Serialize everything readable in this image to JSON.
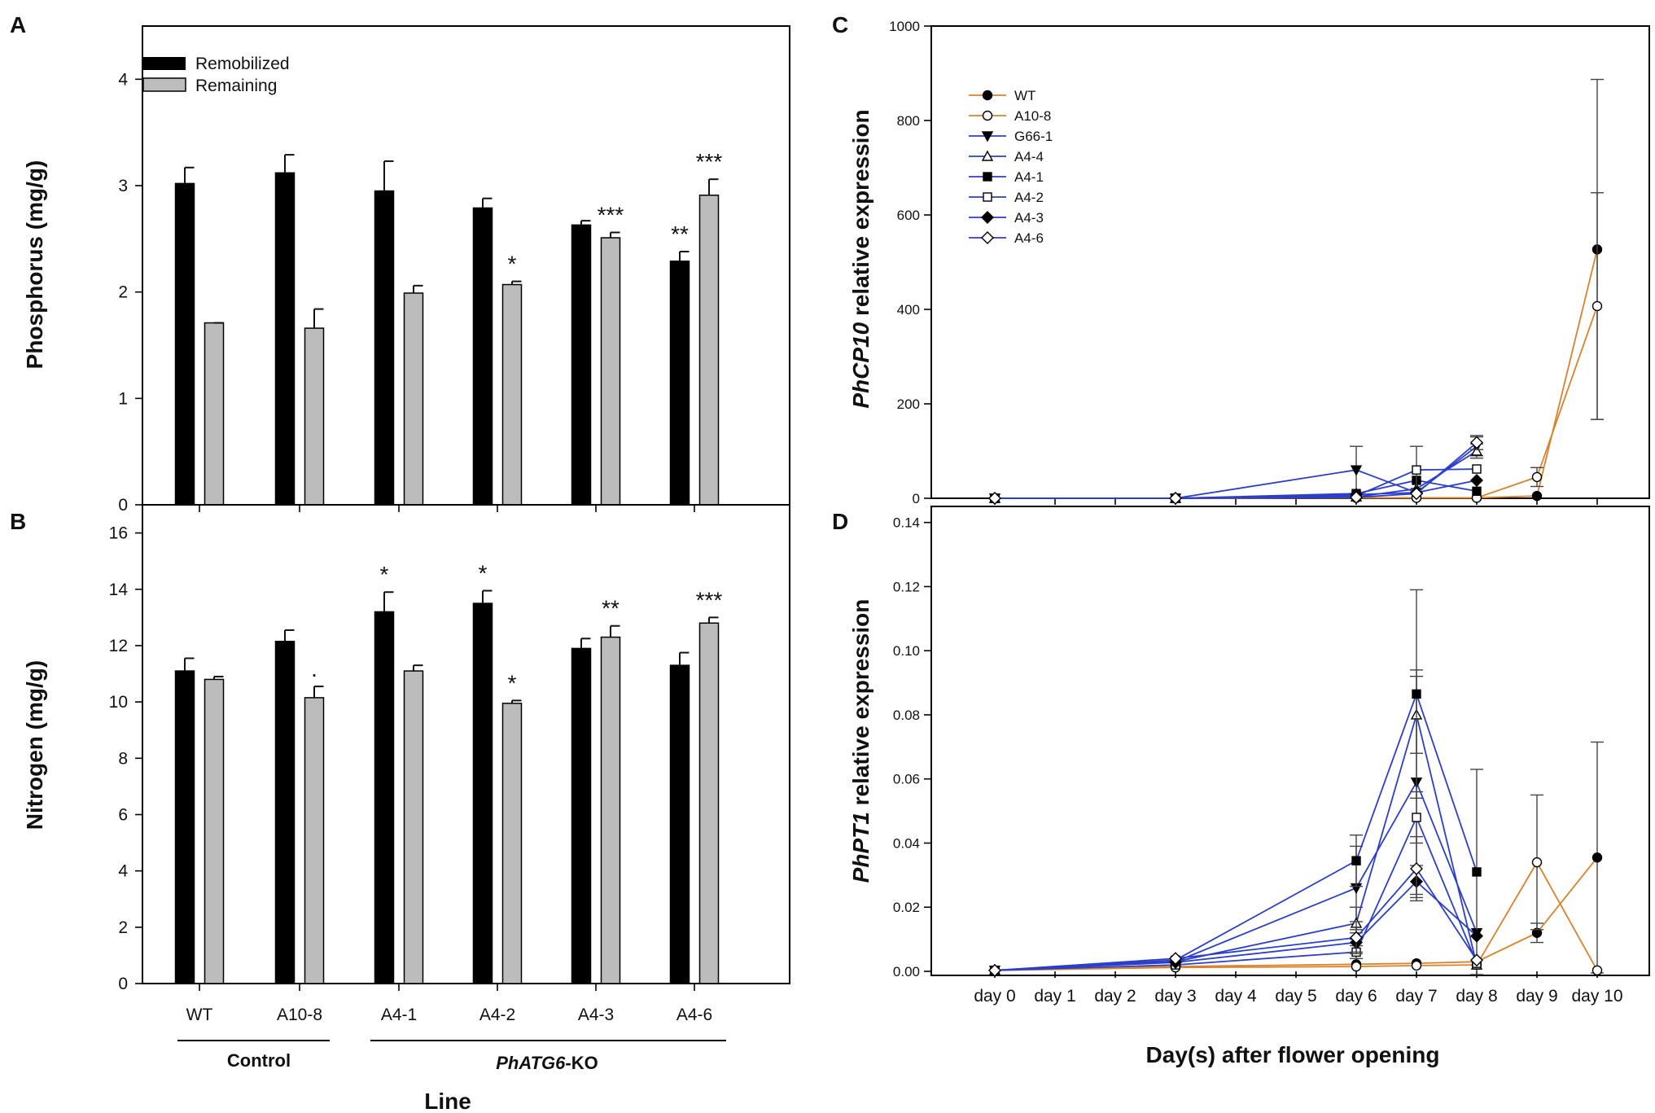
{
  "colors": {
    "remobilized": "#000000",
    "remaining": "#bcbcbc",
    "orange": "#d9822b",
    "blue": "#2b3fc8"
  },
  "chart_data": [
    {
      "panel": "A",
      "type": "bar",
      "ylabel": "Phosphorus (mg/g)",
      "ylim": [
        0,
        4.5
      ],
      "yticks": [
        "0",
        "1",
        "2",
        "3",
        "4"
      ],
      "categories": [
        "WT",
        "A10-8",
        "A4-1",
        "A4-2",
        "A4-3",
        "A4-6"
      ],
      "series": [
        {
          "name": "Remobilized",
          "values": [
            3.02,
            3.12,
            2.95,
            2.79,
            2.63,
            2.29
          ],
          "errors": [
            0.15,
            0.17,
            0.28,
            0.09,
            0.04,
            0.09
          ]
        },
        {
          "name": "Remaining",
          "values": [
            1.71,
            1.66,
            1.99,
            2.07,
            2.51,
            2.91
          ],
          "errors": [
            0.0,
            0.18,
            0.07,
            0.03,
            0.05,
            0.15
          ]
        }
      ],
      "annotations": [
        {
          "category": "A4-2",
          "series": "Remaining",
          "text": "*"
        },
        {
          "category": "A4-3",
          "series": "Remaining",
          "text": "***"
        },
        {
          "category": "A4-6",
          "series": "Remobilized",
          "text": "**"
        },
        {
          "category": "A4-6",
          "series": "Remaining",
          "text": "***"
        }
      ],
      "legend": [
        "Remobilized",
        "Remaining"
      ]
    },
    {
      "panel": "B",
      "type": "bar",
      "xlabel": "Line",
      "ylabel": "Nitrogen (mg/g)",
      "ylim": [
        0,
        17
      ],
      "yticks": [
        "0",
        "2",
        "4",
        "6",
        "8",
        "10",
        "12",
        "14",
        "16"
      ],
      "categories": [
        "WT",
        "A10-8",
        "A4-1",
        "A4-2",
        "A4-3",
        "A4-6"
      ],
      "series": [
        {
          "name": "Remobilized",
          "values": [
            11.1,
            12.15,
            13.2,
            13.5,
            11.9,
            11.3
          ],
          "errors": [
            0.45,
            0.4,
            0.7,
            0.45,
            0.35,
            0.45
          ]
        },
        {
          "name": "Remaining",
          "values": [
            10.8,
            10.15,
            11.1,
            9.95,
            12.3,
            12.8
          ],
          "errors": [
            0.1,
            0.4,
            0.2,
            0.1,
            0.4,
            0.2
          ]
        }
      ],
      "annotations": [
        {
          "category": "A10-8",
          "series": "Remaining",
          "text": "."
        },
        {
          "category": "A4-1",
          "series": "Remobilized",
          "text": "*"
        },
        {
          "category": "A4-2",
          "series": "Remobilized",
          "text": "*"
        },
        {
          "category": "A4-2",
          "series": "Remaining",
          "text": "*"
        },
        {
          "category": "A4-3",
          "series": "Remaining",
          "text": "**"
        },
        {
          "category": "A4-6",
          "series": "Remaining",
          "text": "***"
        }
      ],
      "groups": [
        {
          "label": "Control",
          "italic_part": "",
          "categories": [
            "WT",
            "A10-8"
          ]
        },
        {
          "label": "-KO",
          "italic_part": "PhATG6",
          "categories": [
            "A4-1",
            "A4-2",
            "A4-3",
            "A4-6"
          ]
        }
      ]
    },
    {
      "panel": "C",
      "type": "line",
      "ylabel_italic": "PhCP10",
      "ylabel_rest": " relative expression",
      "ylim": [
        0,
        1000
      ],
      "yticks": [
        "0",
        "200",
        "400",
        "600",
        "800",
        "1000"
      ],
      "x_days": [
        0,
        3,
        6,
        7,
        8,
        9,
        10
      ],
      "series": [
        {
          "name": "WT",
          "color": "orange",
          "marker": "filled-circle",
          "x": [
            0,
            3,
            6,
            7,
            8,
            9,
            10
          ],
          "y": [
            0,
            0,
            1,
            1,
            1,
            5,
            527
          ],
          "err": [
            0,
            0,
            0,
            0,
            0,
            0,
            360
          ]
        },
        {
          "name": "A10-8",
          "color": "orange",
          "marker": "open-circle",
          "x": [
            0,
            3,
            6,
            7,
            8,
            9,
            10
          ],
          "y": [
            0,
            0,
            1,
            1,
            1,
            45,
            407
          ],
          "err": [
            0,
            0,
            0,
            0,
            0,
            20,
            240
          ]
        },
        {
          "name": "G66-1",
          "color": "blue",
          "marker": "filled-triangle-down",
          "x": [
            0,
            3,
            6,
            7,
            8
          ],
          "y": [
            0,
            0,
            60,
            12,
            110
          ],
          "err": [
            0,
            0,
            50,
            0,
            20
          ]
        },
        {
          "name": "A4-4",
          "color": "blue",
          "marker": "open-triangle-up",
          "x": [
            0,
            3,
            6,
            7,
            8
          ],
          "y": [
            0,
            0,
            3,
            20,
            100
          ],
          "err": [
            0,
            0,
            0,
            0,
            15
          ]
        },
        {
          "name": "A4-1",
          "color": "blue",
          "marker": "filled-square",
          "x": [
            0,
            3,
            6,
            7,
            8
          ],
          "y": [
            0,
            0,
            10,
            38,
            15
          ],
          "err": [
            0,
            0,
            0,
            0,
            0
          ]
        },
        {
          "name": "A4-2",
          "color": "blue",
          "marker": "open-square",
          "x": [
            0,
            3,
            6,
            7,
            8
          ],
          "y": [
            0,
            0,
            5,
            60,
            62
          ],
          "err": [
            0,
            0,
            0,
            50,
            0
          ]
        },
        {
          "name": "A4-3",
          "color": "blue",
          "marker": "filled-diamond",
          "x": [
            0,
            3,
            6,
            7,
            8
          ],
          "y": [
            0,
            0,
            8,
            12,
            38
          ],
          "err": [
            0,
            0,
            0,
            0,
            0
          ]
        },
        {
          "name": "A4-6",
          "color": "blue",
          "marker": "open-diamond",
          "x": [
            0,
            3,
            6,
            7,
            8
          ],
          "y": [
            0,
            0,
            2,
            10,
            118
          ],
          "err": [
            0,
            0,
            0,
            0,
            15
          ]
        }
      ],
      "legend": [
        "WT",
        "A10-8",
        "G66-1",
        "A4-4",
        "A4-1",
        "A4-2",
        "A4-3",
        "A4-6"
      ]
    },
    {
      "panel": "D",
      "type": "line",
      "xlabel": "Day(s) after flower opening",
      "ylabel_italic": "PhPT1",
      "ylabel_rest": " relative expression",
      "ylim": [
        0,
        0.145
      ],
      "yticks": [
        "0.00",
        "0.02",
        "0.04",
        "0.06",
        "0.08",
        "0.10",
        "0.12",
        "0.14"
      ],
      "xticks": [
        "day 0",
        "day 1",
        "day 2",
        "day 3",
        "day 4",
        "day 5",
        "day 6",
        "day 7",
        "day 8",
        "day 9",
        "day 10"
      ],
      "series": [
        {
          "name": "WT",
          "color": "orange",
          "marker": "filled-circle",
          "x": [
            0,
            3,
            6,
            7,
            8,
            9,
            10
          ],
          "y": [
            0.0003,
            0.0015,
            0.0022,
            0.0025,
            0.003,
            0.012,
            0.0355
          ],
          "err": [
            0,
            0,
            0,
            0,
            0,
            0.003,
            0.036
          ]
        },
        {
          "name": "A10-8",
          "color": "orange",
          "marker": "open-circle",
          "x": [
            0,
            3,
            6,
            7,
            8,
            9,
            10
          ],
          "y": [
            0.0003,
            0.0012,
            0.0015,
            0.0018,
            0.002,
            0.034,
            0.0003
          ],
          "err": [
            0,
            0,
            0,
            0,
            0,
            0.021,
            0
          ]
        },
        {
          "name": "G66-1",
          "color": "blue",
          "marker": "filled-triangle-down",
          "x": [
            0,
            3,
            6,
            7,
            8
          ],
          "y": [
            0.0003,
            0.003,
            0.026,
            0.059,
            0.012
          ],
          "err": [
            0,
            0,
            0.013,
            0.035,
            0
          ]
        },
        {
          "name": "A4-4",
          "color": "blue",
          "marker": "open-triangle-up",
          "x": [
            0,
            3,
            6,
            7,
            8
          ],
          "y": [
            0.0003,
            0.003,
            0.015,
            0.08,
            0.002
          ],
          "err": [
            0,
            0,
            0.005,
            0.012,
            0
          ]
        },
        {
          "name": "A4-1",
          "color": "blue",
          "marker": "filled-square",
          "x": [
            0,
            3,
            6,
            7,
            8
          ],
          "y": [
            0.0003,
            0.0035,
            0.0345,
            0.0865,
            0.031
          ],
          "err": [
            0,
            0,
            0.008,
            0.0325,
            0.032
          ]
        },
        {
          "name": "A4-2",
          "color": "blue",
          "marker": "open-square",
          "x": [
            0,
            3,
            6,
            7,
            8
          ],
          "y": [
            0.0003,
            0.002,
            0.006,
            0.048,
            0.0025
          ],
          "err": [
            0,
            0,
            0.002,
            0.008,
            0
          ]
        },
        {
          "name": "A4-3",
          "color": "blue",
          "marker": "filled-diamond",
          "x": [
            0,
            3,
            6,
            7,
            8
          ],
          "y": [
            0.0003,
            0.0028,
            0.009,
            0.028,
            0.011
          ],
          "err": [
            0,
            0,
            0.003,
            0.005,
            0
          ]
        },
        {
          "name": "A4-6",
          "color": "blue",
          "marker": "open-diamond",
          "x": [
            0,
            3,
            6,
            7,
            8
          ],
          "y": [
            0.0003,
            0.004,
            0.0105,
            0.032,
            0.0035
          ],
          "err": [
            0,
            0,
            0.005,
            0.01,
            0
          ]
        }
      ]
    }
  ]
}
